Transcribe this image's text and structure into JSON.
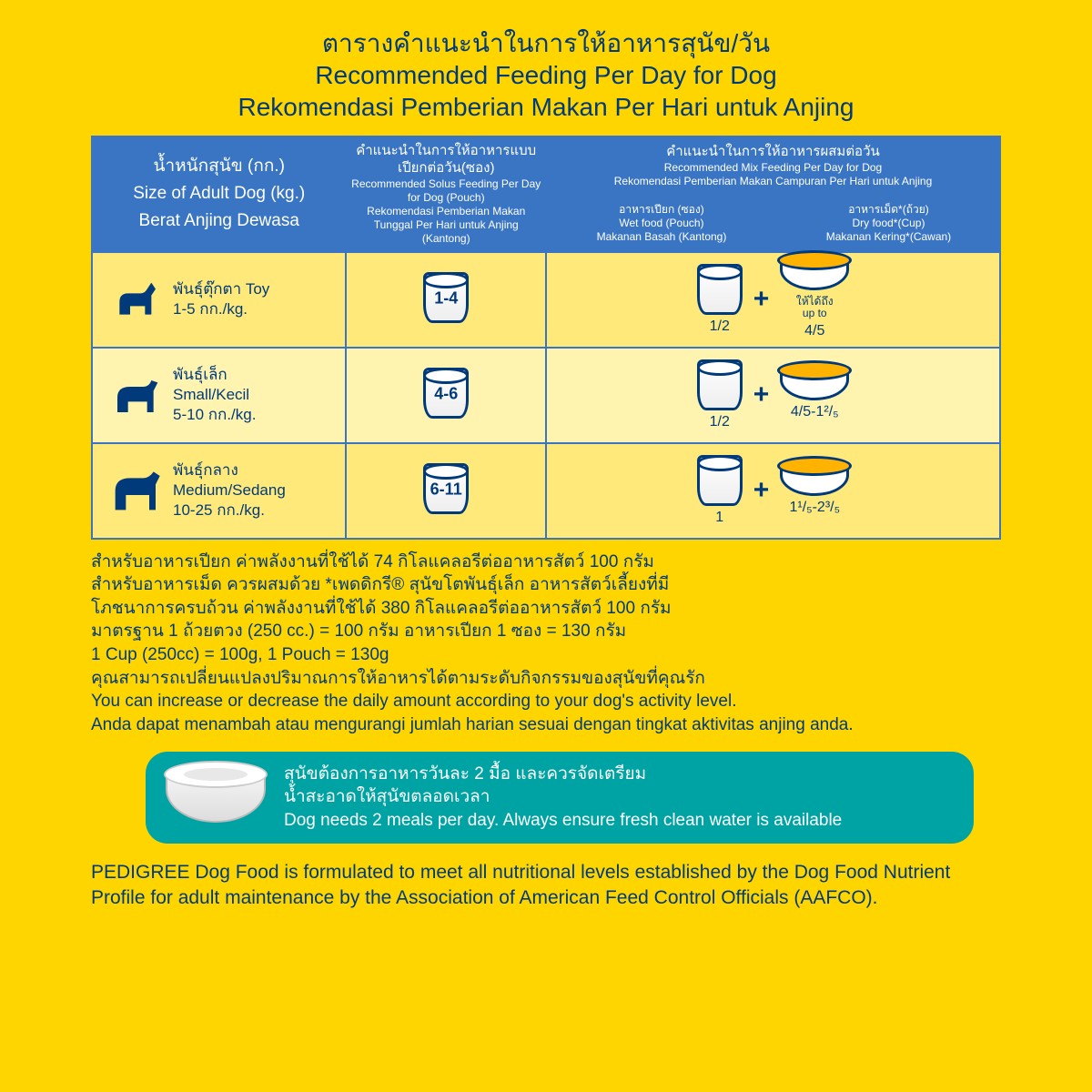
{
  "titles": {
    "th": "ตารางคำแนะนำในการให้อาหารสุนัข/วัน",
    "en": "Recommended Feeding Per Day for Dog",
    "id": "Rekomendasi Pemberian Makan Per Hari untuk Anjing"
  },
  "headers": {
    "size": {
      "th": "น้ำหนักสุนัข (กก.)",
      "en": "Size of Adult Dog (kg.)",
      "id": "Berat Anjing Dewasa"
    },
    "solus": {
      "th": "คำแนะนำในการให้อาหารแบบเปียกต่อวัน(ซอง)",
      "en": "Recommended Solus Feeding Per Day for Dog (Pouch)",
      "id": "Rekomendasi Pemberian Makan Tunggal Per Hari untuk Anjing (Kantong)"
    },
    "mix": {
      "th": "คำแนะนำในการให้อาหารผสมต่อวัน",
      "en": "Recommended Mix Feeding Per Day for Dog",
      "id": "Rekomendasi Pemberian Makan Campuran Per Hari untuk Anjing"
    },
    "wet": {
      "th": "อาหารเปียก (ซอง)",
      "en": "Wet food (Pouch)",
      "id": "Makanan Basah (Kantong)"
    },
    "dry": {
      "th": "อาหารเม็ด*(ถ้วย)",
      "en": "Dry food*(Cup)",
      "id": "Makanan Kering*(Cawan)"
    }
  },
  "rows": [
    {
      "breed_th": "พันธุ์ตุ๊กตา Toy",
      "weight": "1-5 กก./kg.",
      "solus": "1-4",
      "wet": "1/2",
      "dry_pre_th": "ให้ได้ถึง",
      "dry_pre_en": "up to",
      "dry": "4/5"
    },
    {
      "breed_th": "พันธุ์เล็ก",
      "breed_en": "Small/Kecil",
      "weight": "5-10 กก./kg.",
      "solus": "4-6",
      "wet": "1/2",
      "dry": "4/5-1²/₅"
    },
    {
      "breed_th": "พันธุ์กลาง",
      "breed_en": "Medium/Sedang",
      "weight": "10-25 กก./kg.",
      "solus": "6-11",
      "wet": "1",
      "dry": "1¹/₅-2³/₅"
    }
  ],
  "notes": {
    "l1": "สำหรับอาหารเปียก ค่าพลังงานที่ใช้ได้ 74 กิโลแคลอรีต่ออาหารสัตว์ 100 กรัม",
    "l2": "สำหรับอาหารเม็ด ควรผสมด้วย *เพดดิกรี® สุนัขโตพันธุ์เล็ก อาหารสัตว์เลี้ยงที่มี",
    "l3": "โภชนาการครบถ้วน ค่าพลังงานที่ใช้ได้ 380 กิโลแคลอรีต่ออาหารสัตว์ 100 กรัม",
    "l4": "มาตรฐาน 1 ถ้วยตวง (250 cc.) = 100 กรัม อาหารเปียก 1 ซอง = 130 กรัม",
    "l5": "1 Cup (250cc) = 100g, 1 Pouch = 130g",
    "l6": "คุณสามารถเปลี่ยนแปลงปริมาณการให้อาหารได้ตามระดับกิจกรรมของสุนัขที่คุณรัก",
    "l7": "You can increase or decrease the daily amount according to your dog's activity level.",
    "l8": "Anda dapat menambah atau mengurangi jumlah harian sesuai dengan tingkat aktivitas anjing anda."
  },
  "water": {
    "th1": "สุนัขต้องการอาหารวันละ 2 มื้อ และควรจัดเตรียม",
    "th2": "น้ำสะอาดให้สุนัขตลอดเวลา",
    "en": "Dog needs 2 meals per day. Always ensure fresh clean water is available"
  },
  "footer": "PEDIGREE Dog Food is formulated to meet all nutritional levels established by the Dog Food Nutrient Profile for adult maintenance by the Association of American Feed Control Officials (AAFCO).",
  "colors": {
    "bg": "#ffd500",
    "header_bg": "#3a75c4",
    "text": "#003a7a",
    "teal": "#00a3a3"
  }
}
